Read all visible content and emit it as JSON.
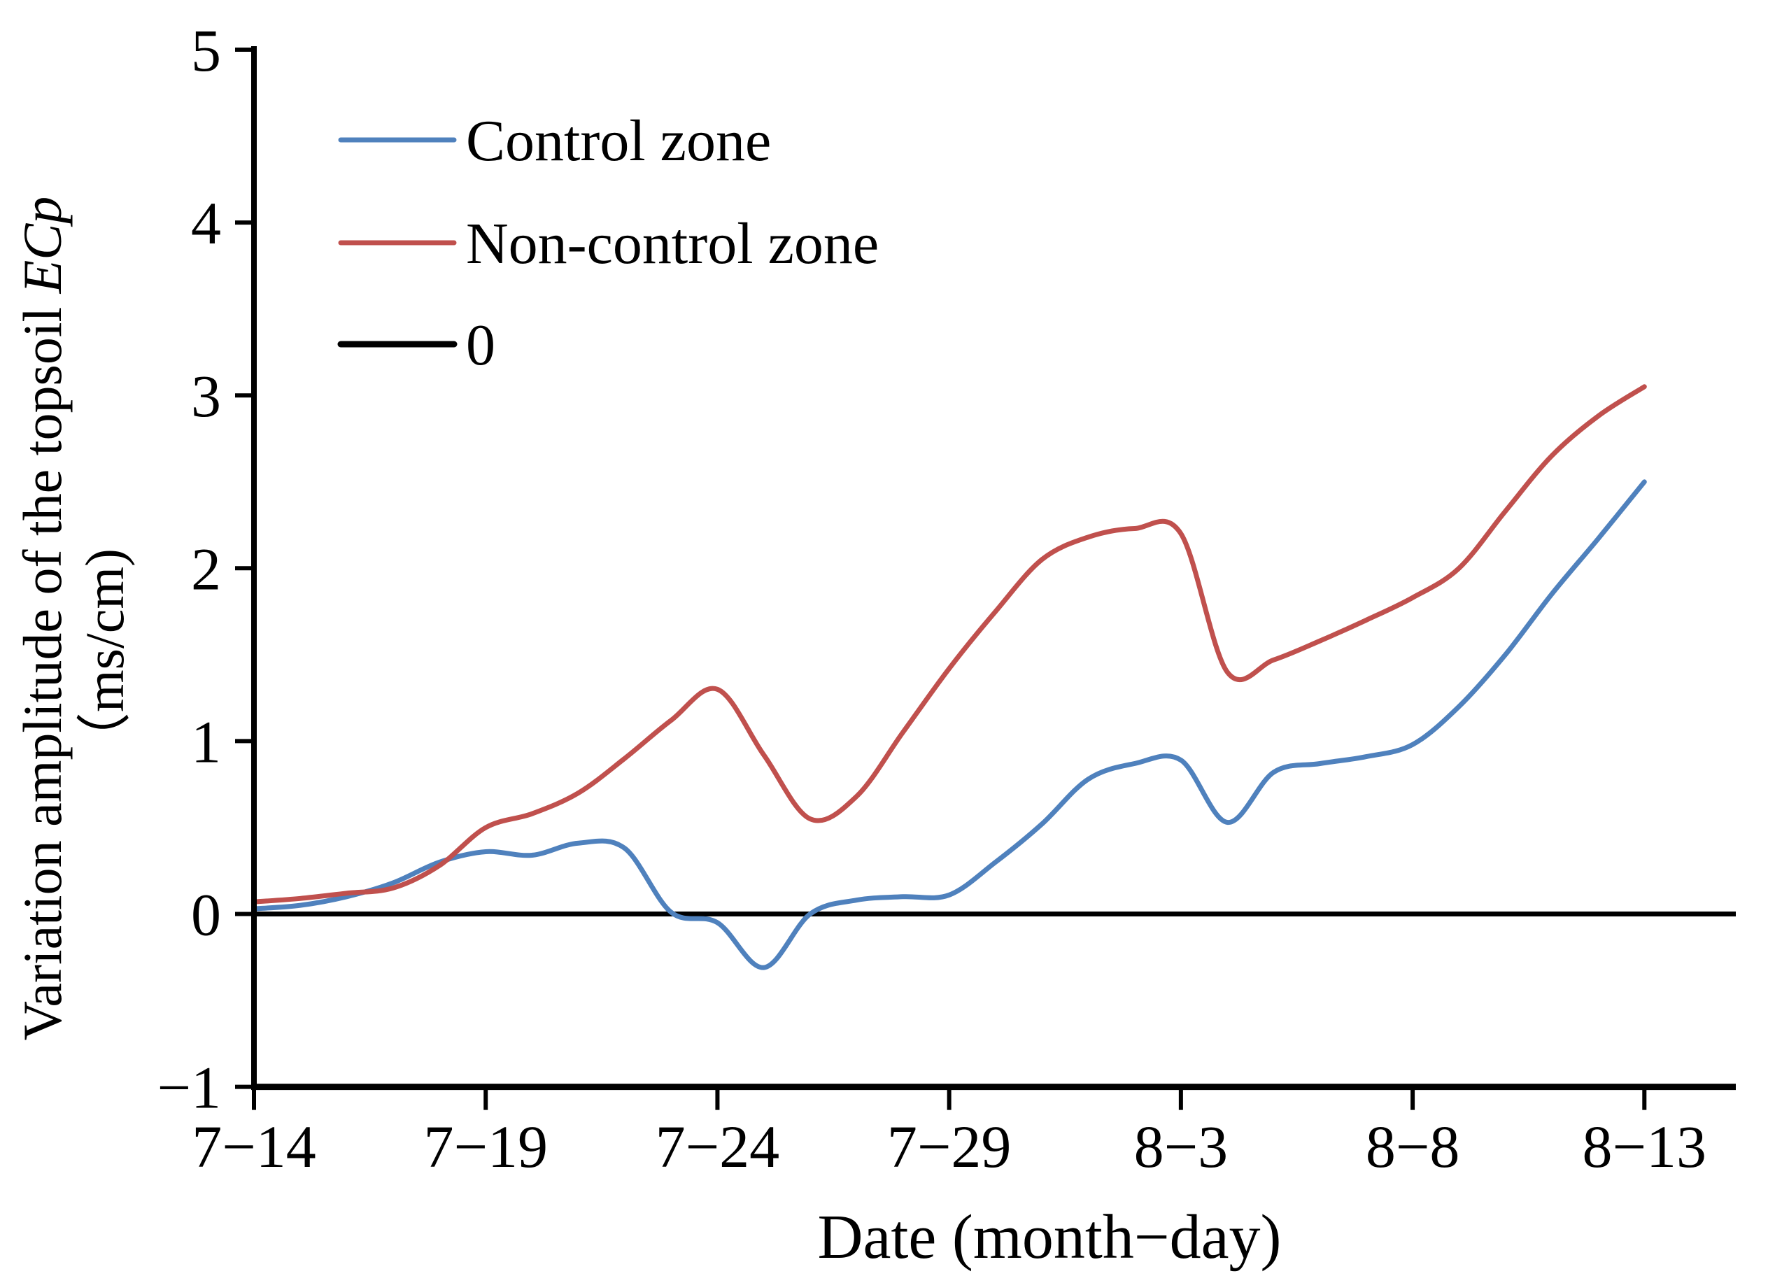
{
  "figure": {
    "y_axis": {
      "title_prefix": "Variation amplitude of the topsoil ",
      "title_italic": "ECp",
      "unit": "（ms/cm)",
      "tick_labels": [
        "5",
        "4",
        "3",
        "2",
        "1",
        "0",
        "−1"
      ],
      "tick_values": [
        5,
        4,
        3,
        2,
        1,
        0,
        -1
      ]
    },
    "x_axis": {
      "title": "Date (month−day)",
      "tick_labels": [
        "7−14",
        "7−19",
        "7−24",
        "7−29",
        "8−3",
        "8−8",
        "8−13"
      ]
    },
    "legend": {
      "items": [
        {
          "label": "Control zone",
          "color": "#4f81bd",
          "stroke_width": 7
        },
        {
          "label": "Non-control zone",
          "color": "#c0504d",
          "stroke_width": 7
        },
        {
          "label": "0",
          "color": "#000000",
          "stroke_width": 9
        }
      ]
    },
    "colors": {
      "control_zone": "#4f81bd",
      "non_control_zone": "#c0504d",
      "axis": "#000000",
      "background": "#ffffff"
    }
  },
  "chart_data": {
    "type": "line",
    "title": "",
    "xlabel": "Date (month−day)",
    "ylabel": "Variation amplitude of the topsoil ECp (ms/cm)",
    "ylim": [
      -1,
      5
    ],
    "yticks": [
      -1,
      0,
      1,
      2,
      3,
      4,
      5
    ],
    "xticks_shown": [
      "7-14",
      "7-19",
      "7-24",
      "7-29",
      "8-3",
      "8-8",
      "8-13"
    ],
    "grid": false,
    "legend_position": "inside-top-left",
    "x": [
      "7-14",
      "7-15",
      "7-16",
      "7-17",
      "7-18",
      "7-19",
      "7-20",
      "7-21",
      "7-22",
      "7-23",
      "7-24",
      "7-25",
      "7-26",
      "7-27",
      "7-28",
      "7-29",
      "7-30",
      "7-31",
      "8-1",
      "8-2",
      "8-3",
      "8-4",
      "8-5",
      "8-6",
      "8-7",
      "8-8",
      "8-9",
      "8-10",
      "8-11",
      "8-12",
      "8-13"
    ],
    "series": [
      {
        "name": "Control zone",
        "color": "#4f81bd",
        "style": "smooth",
        "values": [
          0.03,
          0.05,
          0.1,
          0.18,
          0.3,
          0.36,
          0.34,
          0.41,
          0.38,
          0.01,
          -0.05,
          -0.31,
          0.0,
          0.08,
          0.1,
          0.11,
          0.3,
          0.52,
          0.78,
          0.87,
          0.89,
          0.53,
          0.82,
          0.87,
          0.91,
          0.98,
          1.2,
          1.5,
          1.85,
          2.17,
          2.5
        ]
      },
      {
        "name": "Non-control zone",
        "color": "#c0504d",
        "style": "smooth",
        "values": [
          0.07,
          0.09,
          0.12,
          0.15,
          0.28,
          0.5,
          0.58,
          0.7,
          0.9,
          1.12,
          1.3,
          0.92,
          0.55,
          0.68,
          1.05,
          1.42,
          1.75,
          2.05,
          2.18,
          2.23,
          2.2,
          1.4,
          1.47,
          1.58,
          1.7,
          1.83,
          2.0,
          2.33,
          2.65,
          2.88,
          3.05
        ]
      },
      {
        "name": "0",
        "color": "#000000",
        "style": "horizontal-reference",
        "constant_value": 0
      }
    ]
  }
}
